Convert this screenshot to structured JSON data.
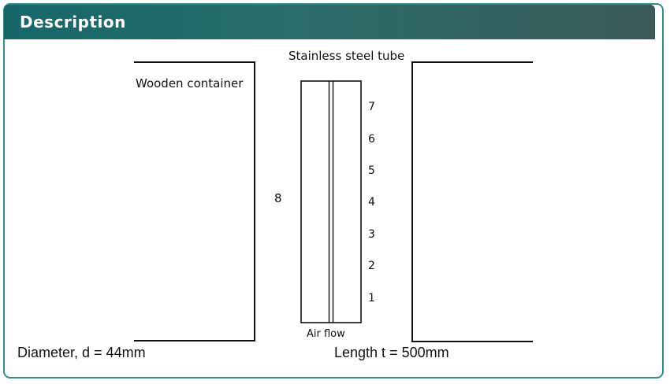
{
  "header": {
    "title": "Description"
  },
  "diagram": {
    "tube_label": "Stainless steel tube",
    "container_label": "Wooden container",
    "thermocouple_labels": [
      "7",
      "6",
      "5",
      "4",
      "3",
      "2",
      "1"
    ],
    "side_label": "8",
    "airflow_label": "Air flow"
  },
  "captions": {
    "diameter": "Diameter, d = 44mm",
    "length": "Length t = 500mm"
  },
  "colors": {
    "accent": "#2f8f86",
    "header": "#1f6b6b"
  }
}
